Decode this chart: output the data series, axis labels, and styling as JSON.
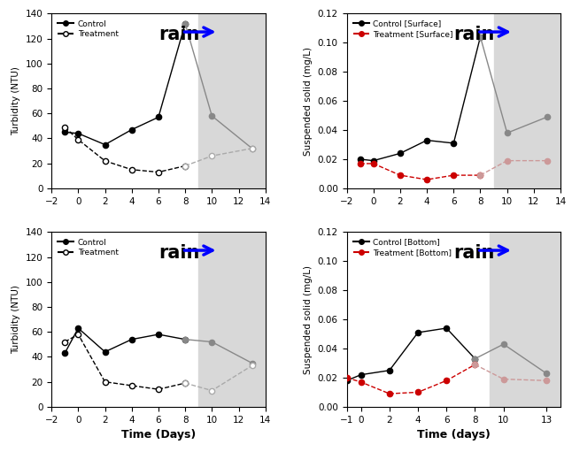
{
  "top_left": {
    "control_x": [
      -1,
      0,
      2,
      4,
      6,
      8,
      10,
      13
    ],
    "control_y": [
      45,
      44,
      35,
      47,
      57,
      132,
      58,
      32
    ],
    "treatment_x": [
      -1,
      0,
      2,
      4,
      6,
      8,
      10,
      13
    ],
    "treatment_y": [
      49,
      39,
      22,
      15,
      13,
      18,
      26,
      32
    ],
    "ylabel": "Turbidity (NTU)",
    "xlabel": "",
    "ylim": [
      0,
      140
    ],
    "yticks": [
      0,
      20,
      40,
      60,
      80,
      100,
      120,
      140
    ],
    "xlim": [
      -2,
      14
    ],
    "xticks": [
      -2,
      0,
      2,
      4,
      6,
      8,
      10,
      12,
      14
    ],
    "shade_start": 9,
    "legend1": "Control",
    "legend2": "Treatment",
    "treatment_red": false
  },
  "top_right": {
    "control_x": [
      -1,
      0,
      2,
      4,
      6,
      8,
      10,
      13
    ],
    "control_y": [
      0.02,
      0.019,
      0.024,
      0.033,
      0.031,
      0.104,
      0.038,
      0.049
    ],
    "treatment_x": [
      -1,
      0,
      2,
      4,
      6,
      8,
      10,
      13
    ],
    "treatment_y": [
      0.017,
      0.017,
      0.009,
      0.006,
      0.009,
      0.009,
      0.019,
      0.019
    ],
    "ylabel": "Suspended solid (mg/L)",
    "xlabel": "",
    "ylim": [
      0.0,
      0.12
    ],
    "yticks": [
      0.0,
      0.02,
      0.04,
      0.06,
      0.08,
      0.1,
      0.12
    ],
    "xlim": [
      -2,
      14
    ],
    "xticks": [
      -2,
      0,
      2,
      4,
      6,
      8,
      10,
      12,
      14
    ],
    "shade_start": 9,
    "legend1": "Control [Surface]",
    "legend2": "Treatment [Surface]",
    "treatment_red": true
  },
  "bottom_left": {
    "control_x": [
      -1,
      0,
      2,
      4,
      6,
      8,
      10,
      13
    ],
    "control_y": [
      43,
      63,
      44,
      54,
      58,
      54,
      52,
      35
    ],
    "treatment_x": [
      -1,
      0,
      2,
      4,
      6,
      8,
      10,
      13
    ],
    "treatment_y": [
      52,
      58,
      20,
      17,
      14,
      19,
      13,
      33
    ],
    "ylabel": "Turbidity (NTU)",
    "xlabel": "Time (Days)",
    "ylim": [
      0,
      140
    ],
    "yticks": [
      0,
      20,
      40,
      60,
      80,
      100,
      120,
      140
    ],
    "xlim": [
      -2,
      14
    ],
    "xticks": [
      -2,
      0,
      2,
      4,
      6,
      8,
      10,
      12,
      14
    ],
    "shade_start": 9,
    "legend1": "Control",
    "legend2": "Treatment",
    "treatment_red": false
  },
  "bottom_right": {
    "control_x": [
      -1,
      0,
      2,
      4,
      6,
      8,
      10,
      13
    ],
    "control_y": [
      0.018,
      0.022,
      0.025,
      0.051,
      0.054,
      0.033,
      0.043,
      0.023
    ],
    "treatment_x": [
      -1,
      0,
      2,
      4,
      6,
      8,
      10,
      13
    ],
    "treatment_y": [
      0.02,
      0.017,
      0.009,
      0.01,
      0.018,
      0.029,
      0.019,
      0.018
    ],
    "ylabel": "Suspended solid (mg/L)",
    "xlabel": "Time (days)",
    "ylim": [
      0.0,
      0.12
    ],
    "yticks": [
      0.0,
      0.02,
      0.04,
      0.06,
      0.08,
      0.1,
      0.12
    ],
    "xlim": [
      -1,
      14
    ],
    "xticks": [
      -1,
      0,
      2,
      4,
      6,
      8,
      10,
      13
    ],
    "shade_start": 9,
    "legend1": "Control [Bottom]",
    "legend2": "Treatment [Bottom]",
    "treatment_red": true
  },
  "shade_color": "#d8d8d8",
  "rain_text": "rain",
  "rain_fontsize": 15,
  "rain_arrow_color": "blue"
}
